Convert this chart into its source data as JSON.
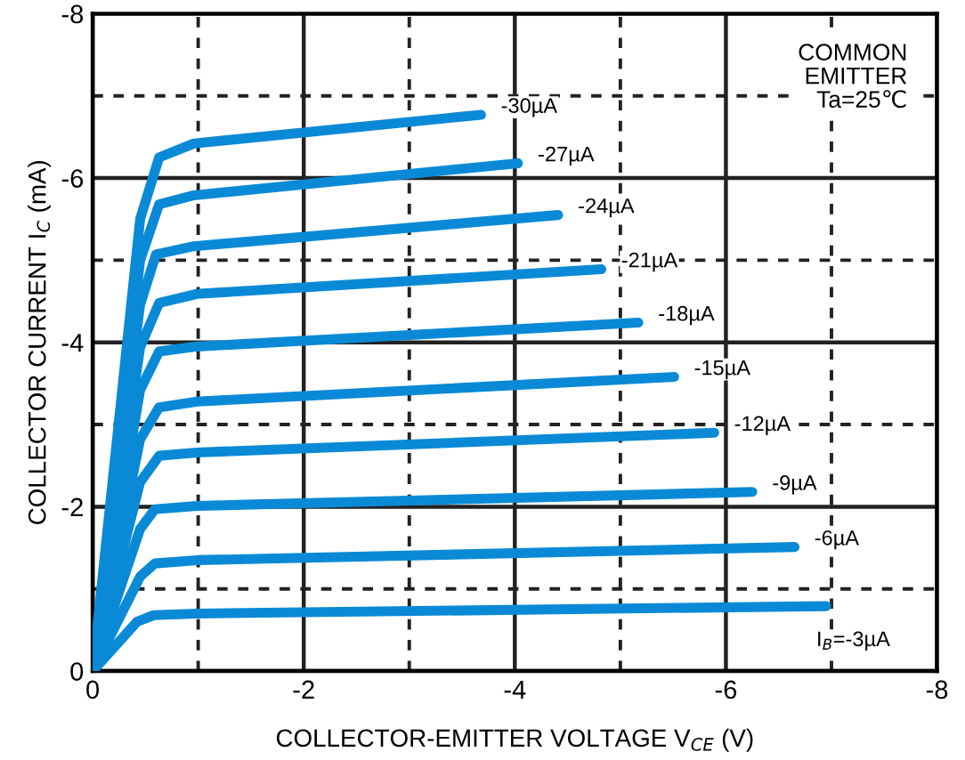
{
  "chart_data": {
    "type": "line",
    "xlabel": "COLLECTOR-EMITTER VOLTAGE V$_{CE}$ (V)",
    "ylabel": "COLLECTOR CURRENT I$_{C}$ (mA)",
    "annotations": [
      "COMMON\nEMITTER\nTa=25℃"
    ],
    "xlim": [
      0,
      -8
    ],
    "ylim": [
      0,
      -8
    ],
    "xticks": [
      0,
      {
        "value": -1,
        "label": null
      },
      -2,
      {
        "value": -3,
        "label": null
      },
      -4,
      {
        "value": -5,
        "label": null
      },
      -6,
      {
        "value": -7,
        "label": null
      },
      -8
    ],
    "yticks": [
      0,
      {
        "value": -1,
        "label": null
      },
      -2,
      {
        "value": -3,
        "label": null
      },
      -4,
      {
        "value": -5,
        "label": null
      },
      -6,
      {
        "value": -7,
        "label": null
      },
      -8
    ],
    "grid": true,
    "legend": false,
    "marker": "none",
    "line_style": "solid",
    "series": [
      {
        "name": "-30µA",
        "color": "#0a8ad6",
        "x": [
          0,
          -0.45,
          -0.63,
          -0.96,
          -3.68
        ],
        "values": [
          0,
          -5.5,
          -6.25,
          -6.42,
          -6.77
        ]
      },
      {
        "name": "-27µA",
        "color": "#0a8ad6",
        "x": [
          0,
          -0.45,
          -0.63,
          -0.96,
          -4.03
        ],
        "values": [
          0,
          -5.0,
          -5.68,
          -5.79,
          -6.18
        ]
      },
      {
        "name": "-24µA",
        "color": "#0a8ad6",
        "x": [
          0,
          -0.45,
          -0.6,
          -0.96,
          -4.41
        ],
        "values": [
          0,
          -4.46,
          -5.07,
          -5.17,
          -5.55
        ]
      },
      {
        "name": "-21µA",
        "color": "#0a8ad6",
        "x": [
          0,
          -0.45,
          -0.63,
          -0.99,
          -4.82
        ],
        "values": [
          0,
          -3.94,
          -4.48,
          -4.59,
          -4.89
        ]
      },
      {
        "name": "-18µA",
        "color": "#0a8ad6",
        "x": [
          0,
          -0.45,
          -0.63,
          -0.99,
          -5.17
        ],
        "values": [
          0,
          -3.42,
          -3.89,
          -3.95,
          -4.24
        ]
      },
      {
        "name": "-15µA",
        "color": "#0a8ad6",
        "x": [
          0,
          -0.45,
          -0.63,
          -0.99,
          -5.51
        ],
        "values": [
          0,
          -2.82,
          -3.21,
          -3.28,
          -3.58
        ]
      },
      {
        "name": "-12µA",
        "color": "#0a8ad6",
        "x": [
          0,
          -0.45,
          -0.63,
          -0.99,
          -5.89
        ],
        "values": [
          0,
          -2.3,
          -2.62,
          -2.66,
          -2.9
        ]
      },
      {
        "name": "-9µA",
        "color": "#0a8ad6",
        "x": [
          0,
          -0.45,
          -0.59,
          -0.99,
          -6.25
        ],
        "values": [
          0,
          -1.73,
          -1.97,
          -2.01,
          -2.18
        ]
      },
      {
        "name": "-6µA",
        "color": "#0a8ad6",
        "x": [
          0,
          -0.45,
          -0.59,
          -0.99,
          -6.65
        ],
        "values": [
          0,
          -1.15,
          -1.31,
          -1.35,
          -1.51
        ]
      },
      {
        "name": "I$_{B}$=-3µA",
        "color": "#0a8ad6",
        "x": [
          0,
          -0.42,
          -0.58,
          -0.99,
          -6.95
        ],
        "values": [
          0,
          -0.6,
          -0.68,
          -0.7,
          -0.79
        ]
      }
    ]
  }
}
